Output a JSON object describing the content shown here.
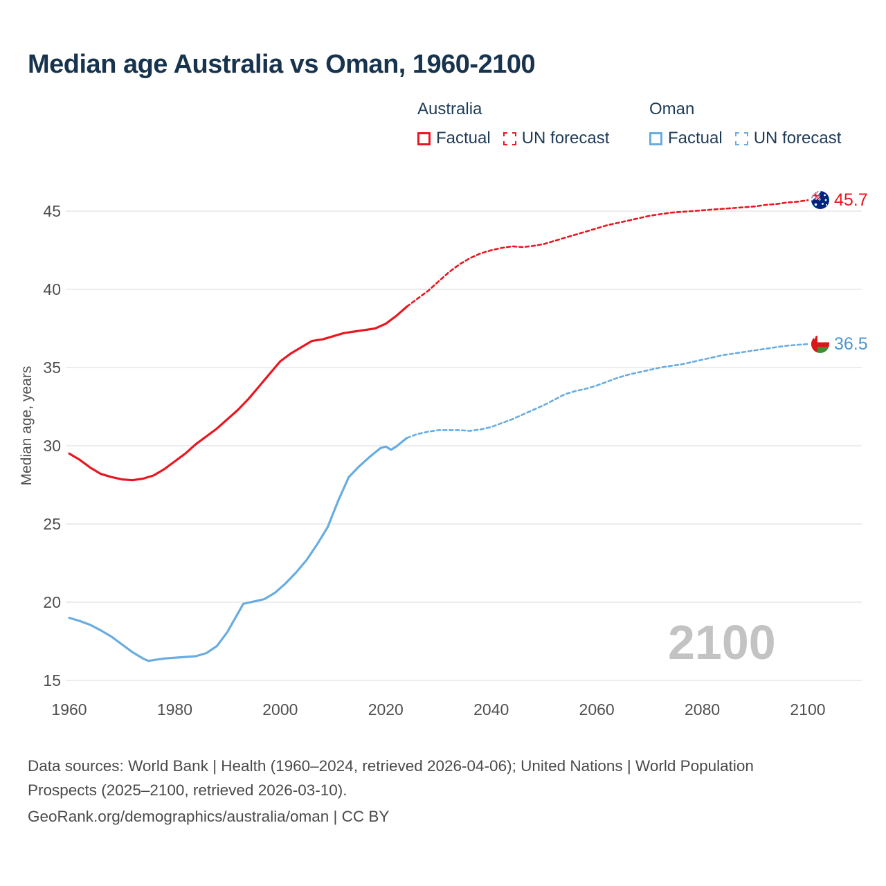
{
  "title": "Median age Australia vs Oman, 1960-2100",
  "watermark": "2100",
  "legend": {
    "groups": [
      {
        "name": "Australia",
        "color": "#e9161f",
        "items": [
          {
            "label": "Factual",
            "style": "solid"
          },
          {
            "label": "UN forecast",
            "style": "dashed"
          }
        ]
      },
      {
        "name": "Oman",
        "color": "#68ace0",
        "items": [
          {
            "label": "Factual",
            "style": "solid"
          },
          {
            "label": "UN forecast",
            "style": "dashed"
          }
        ]
      }
    ]
  },
  "end_labels": [
    {
      "country": "Australia",
      "value": "45.7",
      "color": "#e9161f",
      "flag": "australia-flag"
    },
    {
      "country": "Oman",
      "value": "36.5",
      "color": "#4a97d2",
      "flag": "oman-flag"
    }
  ],
  "footer": {
    "sources": "Data sources: World Bank | Health (1960–2024, retrieved 2026-04-06); United Nations | World Population Prospects (2025–2100, retrieved 2026-03-10).",
    "attribution": "GeoRank.org/demographics/australia/oman | CC BY"
  },
  "chart_data": {
    "type": "line",
    "title": "Median age Australia vs Oman, 1960-2100",
    "xlabel": "",
    "ylabel": "Median age, years",
    "x_range": [
      1960,
      2100
    ],
    "y_range": [
      15,
      45
    ],
    "x_ticks": [
      1960,
      1980,
      2000,
      2020,
      2040,
      2060,
      2080,
      2100
    ],
    "y_ticks": [
      15,
      20,
      25,
      30,
      35,
      40,
      45
    ],
    "grid": "horizontal",
    "legend_position": "top",
    "series": [
      {
        "name": "Australia — Factual",
        "color": "#e9161f",
        "dash": false,
        "points": [
          [
            1960,
            29.5
          ],
          [
            1962,
            29.1
          ],
          [
            1964,
            28.6
          ],
          [
            1966,
            28.2
          ],
          [
            1968,
            28.0
          ],
          [
            1970,
            27.85
          ],
          [
            1972,
            27.8
          ],
          [
            1974,
            27.9
          ],
          [
            1976,
            28.1
          ],
          [
            1978,
            28.5
          ],
          [
            1980,
            29.0
          ],
          [
            1982,
            29.5
          ],
          [
            1984,
            30.1
          ],
          [
            1986,
            30.6
          ],
          [
            1988,
            31.1
          ],
          [
            1990,
            31.7
          ],
          [
            1992,
            32.3
          ],
          [
            1994,
            33.0
          ],
          [
            1996,
            33.8
          ],
          [
            1998,
            34.6
          ],
          [
            2000,
            35.4
          ],
          [
            2002,
            35.9
          ],
          [
            2004,
            36.3
          ],
          [
            2006,
            36.7
          ],
          [
            2008,
            36.8
          ],
          [
            2010,
            37.0
          ],
          [
            2012,
            37.2
          ],
          [
            2014,
            37.3
          ],
          [
            2016,
            37.4
          ],
          [
            2018,
            37.5
          ],
          [
            2020,
            37.8
          ],
          [
            2022,
            38.3
          ],
          [
            2024,
            38.9
          ]
        ]
      },
      {
        "name": "Australia — UN forecast",
        "color": "#e9161f",
        "dash": true,
        "points": [
          [
            2024,
            38.9
          ],
          [
            2026,
            39.4
          ],
          [
            2028,
            39.9
          ],
          [
            2030,
            40.5
          ],
          [
            2032,
            41.1
          ],
          [
            2034,
            41.6
          ],
          [
            2036,
            42.0
          ],
          [
            2038,
            42.3
          ],
          [
            2040,
            42.5
          ],
          [
            2042,
            42.65
          ],
          [
            2044,
            42.75
          ],
          [
            2046,
            42.7
          ],
          [
            2048,
            42.78
          ],
          [
            2050,
            42.9
          ],
          [
            2052,
            43.1
          ],
          [
            2054,
            43.3
          ],
          [
            2056,
            43.5
          ],
          [
            2058,
            43.7
          ],
          [
            2060,
            43.9
          ],
          [
            2062,
            44.1
          ],
          [
            2064,
            44.25
          ],
          [
            2066,
            44.4
          ],
          [
            2068,
            44.55
          ],
          [
            2070,
            44.7
          ],
          [
            2072,
            44.8
          ],
          [
            2074,
            44.9
          ],
          [
            2076,
            44.95
          ],
          [
            2078,
            45.0
          ],
          [
            2080,
            45.05
          ],
          [
            2082,
            45.1
          ],
          [
            2084,
            45.15
          ],
          [
            2086,
            45.2
          ],
          [
            2088,
            45.25
          ],
          [
            2090,
            45.3
          ],
          [
            2092,
            45.4
          ],
          [
            2094,
            45.45
          ],
          [
            2096,
            45.55
          ],
          [
            2098,
            45.6
          ],
          [
            2100,
            45.7
          ]
        ]
      },
      {
        "name": "Oman — Factual",
        "color": "#68ace0",
        "dash": false,
        "points": [
          [
            1960,
            19.0
          ],
          [
            1962,
            18.8
          ],
          [
            1964,
            18.55
          ],
          [
            1966,
            18.2
          ],
          [
            1968,
            17.8
          ],
          [
            1970,
            17.3
          ],
          [
            1972,
            16.8
          ],
          [
            1974,
            16.4
          ],
          [
            1975,
            16.25
          ],
          [
            1976,
            16.3
          ],
          [
            1978,
            16.4
          ],
          [
            1980,
            16.45
          ],
          [
            1982,
            16.5
          ],
          [
            1984,
            16.55
          ],
          [
            1986,
            16.75
          ],
          [
            1988,
            17.2
          ],
          [
            1990,
            18.1
          ],
          [
            1992,
            19.3
          ],
          [
            1993,
            19.9
          ],
          [
            1995,
            20.05
          ],
          [
            1997,
            20.2
          ],
          [
            1999,
            20.6
          ],
          [
            2001,
            21.2
          ],
          [
            2003,
            21.9
          ],
          [
            2005,
            22.7
          ],
          [
            2007,
            23.7
          ],
          [
            2009,
            24.8
          ],
          [
            2011,
            26.5
          ],
          [
            2013,
            28.0
          ],
          [
            2015,
            28.7
          ],
          [
            2017,
            29.3
          ],
          [
            2019,
            29.85
          ],
          [
            2020,
            29.95
          ],
          [
            2021,
            29.75
          ],
          [
            2022,
            29.95
          ],
          [
            2024,
            30.5
          ]
        ]
      },
      {
        "name": "Oman — UN forecast",
        "color": "#68ace0",
        "dash": true,
        "points": [
          [
            2024,
            30.5
          ],
          [
            2026,
            30.75
          ],
          [
            2028,
            30.9
          ],
          [
            2030,
            31.0
          ],
          [
            2032,
            31.0
          ],
          [
            2034,
            31.0
          ],
          [
            2036,
            30.95
          ],
          [
            2038,
            31.05
          ],
          [
            2040,
            31.2
          ],
          [
            2042,
            31.45
          ],
          [
            2044,
            31.7
          ],
          [
            2046,
            32.0
          ],
          [
            2048,
            32.3
          ],
          [
            2050,
            32.6
          ],
          [
            2052,
            32.95
          ],
          [
            2054,
            33.3
          ],
          [
            2056,
            33.5
          ],
          [
            2058,
            33.65
          ],
          [
            2060,
            33.85
          ],
          [
            2062,
            34.1
          ],
          [
            2064,
            34.35
          ],
          [
            2066,
            34.55
          ],
          [
            2068,
            34.7
          ],
          [
            2070,
            34.85
          ],
          [
            2072,
            35.0
          ],
          [
            2074,
            35.1
          ],
          [
            2076,
            35.2
          ],
          [
            2078,
            35.35
          ],
          [
            2080,
            35.5
          ],
          [
            2082,
            35.65
          ],
          [
            2084,
            35.8
          ],
          [
            2086,
            35.9
          ],
          [
            2088,
            36.0
          ],
          [
            2090,
            36.1
          ],
          [
            2092,
            36.2
          ],
          [
            2094,
            36.3
          ],
          [
            2096,
            36.4
          ],
          [
            2098,
            36.45
          ],
          [
            2100,
            36.5
          ]
        ]
      }
    ]
  }
}
